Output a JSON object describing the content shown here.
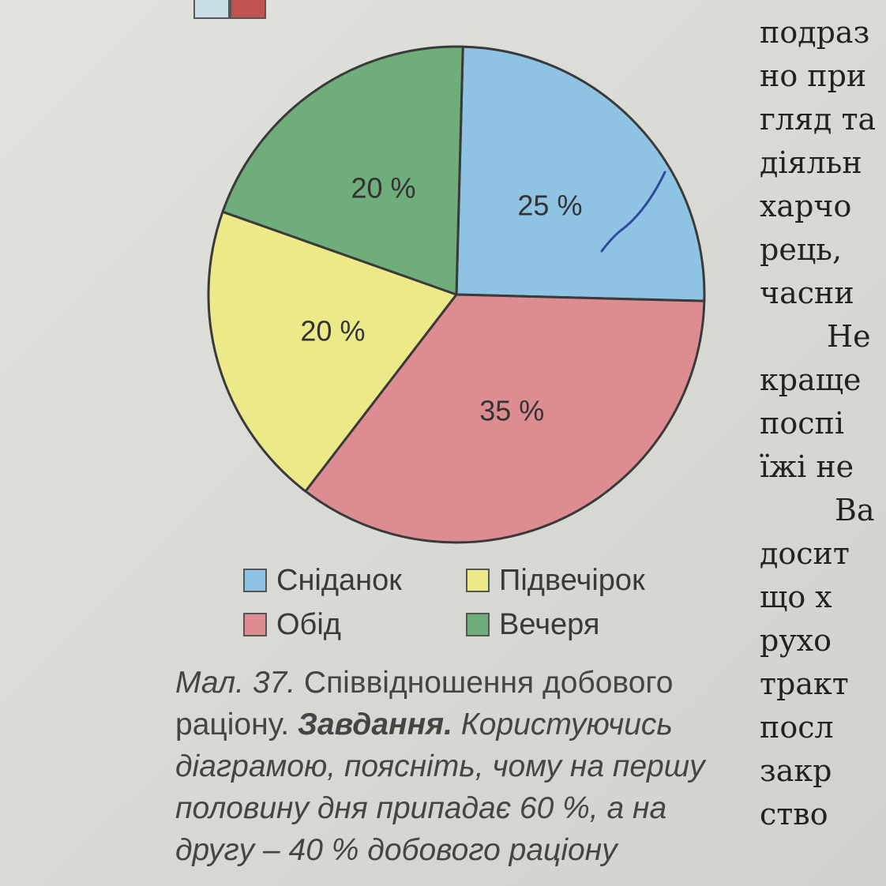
{
  "chart_data": {
    "type": "pie",
    "title": "",
    "slices": [
      {
        "label": "Сніданок",
        "value": 25,
        "value_label": "25 %",
        "color": "#8fc3e4"
      },
      {
        "label": "Обід",
        "value": 35,
        "value_label": "35 %",
        "color": "#dd8d91"
      },
      {
        "label": "Підвечірок",
        "value": 20,
        "value_label": "20 %",
        "color": "#ece988"
      },
      {
        "label": "Вечеря",
        "value": 20,
        "value_label": "20 %",
        "color": "#6fad7b"
      }
    ],
    "start_angle": "12 o'clock",
    "direction": "clockwise",
    "legend": {
      "placement": "bottom",
      "entries": [
        "Сніданок",
        "Підвечірок",
        "Обід",
        "Вечеря"
      ]
    }
  },
  "caption": {
    "figure_label": "Мал. 37.",
    "figure_title": " Співвідношення добового раціону.",
    "task_label": "Завдання.",
    "task_text": " Користуючись діаграмою, поясніть, чому на першу половину дня припадає 60 %, а на другу – 40 % добового раціону"
  },
  "side_text": {
    "lines": [
      "подраз",
      "но при",
      "гляд та",
      "діяльн",
      "харчо",
      "рець,",
      "часни",
      "Не",
      "краще",
      "поспі",
      "їжі не",
      "Ва",
      "досит",
      "що х",
      "рухо",
      "тракт",
      "посл",
      "закр",
      "ство"
    ]
  },
  "top_swatch_colors": [
    "#c9dde6",
    "#c0534f"
  ]
}
